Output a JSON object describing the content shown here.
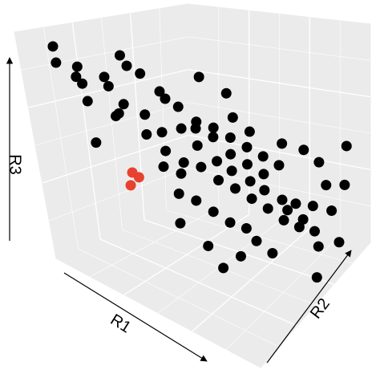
{
  "chart_data": {
    "type": "scatter3d",
    "xlabel": "R1",
    "ylabel": "R2",
    "zlabel": "R3",
    "xlim": [
      0,
      1
    ],
    "ylim": [
      0,
      1
    ],
    "zlim": [
      0,
      1
    ],
    "grid": true,
    "series": [
      {
        "color": "#000000",
        "x": [
          0.08,
          0.12,
          0.1,
          0.15,
          0.05,
          0.2,
          0.18,
          0.22,
          0.25,
          0.12,
          0.3,
          0.28,
          0.15,
          0.2,
          0.35,
          0.32,
          0.25,
          0.4,
          0.38,
          0.3,
          0.45,
          0.42,
          0.35,
          0.5,
          0.48,
          0.4,
          0.55,
          0.52,
          0.45,
          0.6,
          0.58,
          0.5,
          0.65,
          0.62,
          0.55,
          0.7,
          0.68,
          0.6,
          0.75,
          0.72,
          0.8,
          0.78,
          0.85,
          0.88,
          0.9,
          0.82,
          0.92,
          0.95,
          0.45,
          0.5,
          0.55,
          0.6,
          0.65,
          0.4,
          0.45,
          0.5,
          0.55,
          0.6,
          0.65,
          0.7,
          0.75,
          0.35,
          0.5,
          0.55,
          0.65,
          0.7,
          0.75,
          0.8,
          0.85,
          0.4,
          0.3,
          0.2,
          0.1,
          0.25,
          0.58,
          0.68,
          0.48,
          0.9,
          0.95,
          0.62
        ],
        "y": [
          0.1,
          0.05,
          0.2,
          0.15,
          0.25,
          0.1,
          0.25,
          0.3,
          0.2,
          0.35,
          0.15,
          0.35,
          0.4,
          0.45,
          0.25,
          0.4,
          0.5,
          0.3,
          0.45,
          0.55,
          0.35,
          0.5,
          0.6,
          0.4,
          0.55,
          0.65,
          0.45,
          0.6,
          0.7,
          0.5,
          0.65,
          0.75,
          0.55,
          0.7,
          0.8,
          0.6,
          0.75,
          0.85,
          0.65,
          0.8,
          0.7,
          0.85,
          0.75,
          0.85,
          0.7,
          0.9,
          0.9,
          0.8,
          0.45,
          0.5,
          0.55,
          0.6,
          0.65,
          0.4,
          0.3,
          0.35,
          0.4,
          0.45,
          0.5,
          0.5,
          0.55,
          0.35,
          0.65,
          0.7,
          0.8,
          0.9,
          0.95,
          0.6,
          0.65,
          0.75,
          0.7,
          0.6,
          0.5,
          0.05,
          0.3,
          0.4,
          0.25,
          0.95,
          0.6,
          0.35
        ],
        "z": [
          0.95,
          0.9,
          0.85,
          0.8,
          0.78,
          0.75,
          0.82,
          0.7,
          0.68,
          0.74,
          0.72,
          0.66,
          0.88,
          0.8,
          0.62,
          0.58,
          0.72,
          0.55,
          0.6,
          0.65,
          0.5,
          0.52,
          0.58,
          0.48,
          0.45,
          0.55,
          0.42,
          0.4,
          0.5,
          0.38,
          0.35,
          0.45,
          0.33,
          0.3,
          0.4,
          0.28,
          0.25,
          0.35,
          0.22,
          0.22,
          0.18,
          0.2,
          0.15,
          0.2,
          0.12,
          0.28,
          0.3,
          0.1,
          0.62,
          0.58,
          0.5,
          0.45,
          0.4,
          0.42,
          0.38,
          0.35,
          0.3,
          0.25,
          0.22,
          0.18,
          0.12,
          0.45,
          0.62,
          0.55,
          0.48,
          0.42,
          0.35,
          0.3,
          0.25,
          0.68,
          0.75,
          0.65,
          0.8,
          0.6,
          0.2,
          0.15,
          0.28,
          0.45,
          0.05,
          0.1
        ]
      },
      {
        "color": "#e8412f",
        "x": [
          0.3,
          0.33,
          0.3
        ],
        "y": [
          0.2,
          0.2,
          0.18
        ],
        "z": [
          0.45,
          0.44,
          0.4
        ]
      }
    ]
  }
}
